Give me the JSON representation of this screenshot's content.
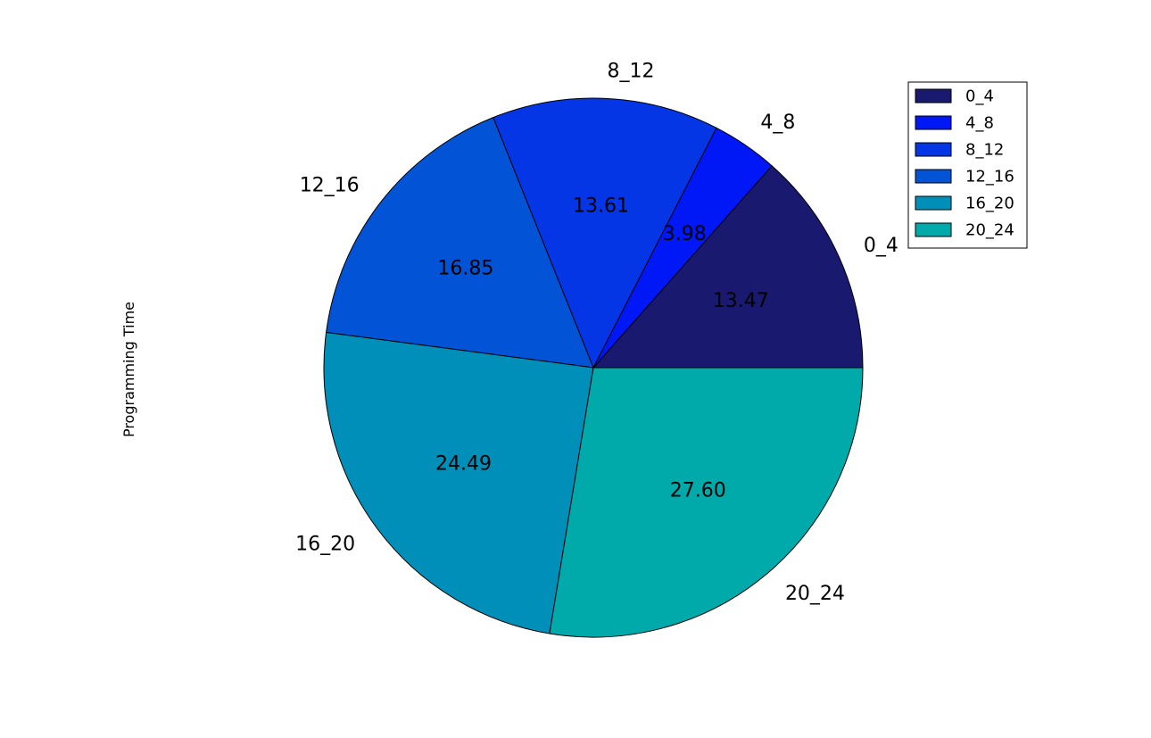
{
  "chart_data": {
    "type": "pie",
    "ylabel": "Programming Time",
    "categories": [
      "0_4",
      "4_8",
      "8_12",
      "12_16",
      "16_20",
      "20_24"
    ],
    "values": [
      13.47,
      3.98,
      13.61,
      16.85,
      24.49,
      27.6
    ],
    "value_labels": [
      "13.47",
      "3.98",
      "13.61",
      "16.85",
      "24.49",
      "27.60"
    ],
    "colors": [
      "#191970",
      "#0018f5",
      "#0536e6",
      "#0353d6",
      "#008fb8",
      "#00aaaa"
    ],
    "start_angle_deg": 0,
    "direction": "counterclockwise",
    "legend_position": "top-right",
    "legend": [
      "0_4",
      "4_8",
      "8_12",
      "12_16",
      "16_20",
      "20_24"
    ]
  }
}
